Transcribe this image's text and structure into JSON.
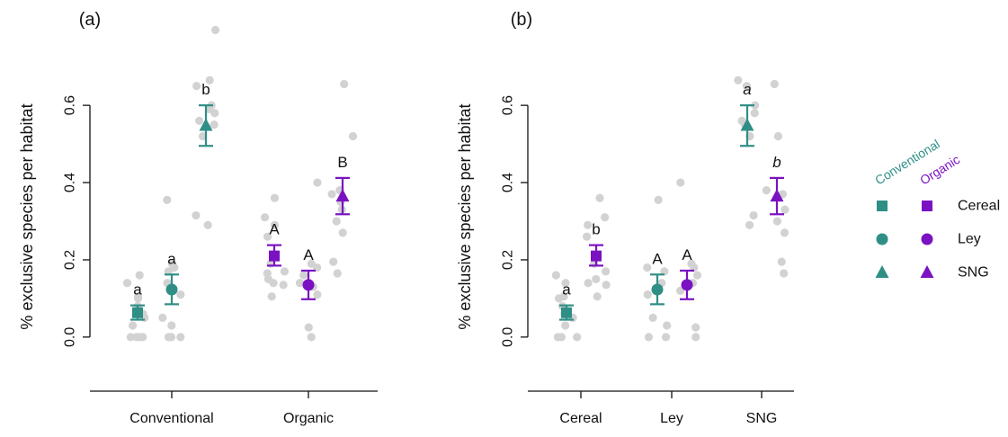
{
  "colors": {
    "conventional": "#2f8f86",
    "organic": "#7a12c2",
    "raw_points": "#d2d2d2"
  },
  "chart_data": [
    {
      "type": "scatter",
      "panel_label": "(a)",
      "ylabel": "% exclusive species per habitat",
      "ylim": [
        -0.14,
        0.74
      ],
      "yticks": [
        0.0,
        0.2,
        0.4,
        0.6
      ],
      "ytick_labels": [
        "0.0",
        "0.2",
        "0.4",
        "0.6"
      ],
      "groups": [
        "Conventional",
        "Organic"
      ],
      "series": [
        {
          "system": "Conventional",
          "habitat": "Cereal",
          "group": 0,
          "slot": 0,
          "mean": 0.063,
          "lower": 0.045,
          "upper": 0.082,
          "letter": "a",
          "italic": false,
          "raw": [
            0.0,
            0.0,
            0.0,
            0.0,
            0.03,
            0.05,
            0.06,
            0.08,
            0.1,
            0.105,
            0.14,
            0.16
          ]
        },
        {
          "system": "Conventional",
          "habitat": "Ley",
          "group": 0,
          "slot": 1,
          "mean": 0.123,
          "lower": 0.085,
          "upper": 0.162,
          "letter": "a",
          "italic": false,
          "raw": [
            0.0,
            0.0,
            0.0,
            0.03,
            0.05,
            0.11,
            0.14,
            0.17,
            0.18,
            0.18,
            0.19,
            0.355
          ]
        },
        {
          "system": "Conventional",
          "habitat": "SNG",
          "group": 0,
          "slot": 2,
          "mean": 0.548,
          "lower": 0.495,
          "upper": 0.6,
          "letter": "b",
          "italic": false,
          "raw": [
            0.29,
            0.315,
            0.52,
            0.55,
            0.56,
            0.58,
            0.59,
            0.6,
            0.65,
            0.665,
            0.795
          ]
        },
        {
          "system": "Organic",
          "habitat": "Cereal",
          "group": 1,
          "slot": 0,
          "mean": 0.21,
          "lower": 0.185,
          "upper": 0.238,
          "letter": "A",
          "italic": false,
          "raw": [
            0.105,
            0.135,
            0.14,
            0.15,
            0.165,
            0.17,
            0.19,
            0.26,
            0.29,
            0.31,
            0.36
          ]
        },
        {
          "system": "Organic",
          "habitat": "Ley",
          "group": 1,
          "slot": 1,
          "mean": 0.135,
          "lower": 0.098,
          "upper": 0.172,
          "letter": "A",
          "italic": false,
          "raw": [
            0.0,
            0.025,
            0.11,
            0.13,
            0.14,
            0.16,
            0.18,
            0.19,
            0.4
          ]
        },
        {
          "system": "Organic",
          "habitat": "SNG",
          "group": 1,
          "slot": 2,
          "mean": 0.365,
          "lower": 0.318,
          "upper": 0.412,
          "letter": "B",
          "italic": false,
          "raw": [
            0.165,
            0.195,
            0.27,
            0.3,
            0.33,
            0.35,
            0.37,
            0.38,
            0.52,
            0.655
          ]
        }
      ]
    },
    {
      "type": "scatter",
      "panel_label": "(b)",
      "ylabel": "% exclusive species per habitat",
      "ylim": [
        -0.14,
        0.74
      ],
      "yticks": [
        0.0,
        0.2,
        0.4,
        0.6
      ],
      "ytick_labels": [
        "0.0",
        "0.2",
        "0.4",
        "0.6"
      ],
      "groups": [
        "Cereal",
        "Ley",
        "SNG"
      ],
      "series": [
        {
          "system": "Conventional",
          "habitat": "Cereal",
          "group": 0,
          "slot": 0,
          "mean": 0.063,
          "lower": 0.045,
          "upper": 0.082,
          "letter": "a",
          "italic": false,
          "raw": [
            0.0,
            0.0,
            0.0,
            0.03,
            0.05,
            0.06,
            0.08,
            0.1,
            0.105,
            0.14,
            0.16
          ]
        },
        {
          "system": "Organic",
          "habitat": "Cereal",
          "group": 0,
          "slot": 1,
          "mean": 0.21,
          "lower": 0.185,
          "upper": 0.238,
          "letter": "b",
          "italic": false,
          "raw": [
            0.105,
            0.135,
            0.14,
            0.15,
            0.17,
            0.19,
            0.26,
            0.29,
            0.31,
            0.36
          ]
        },
        {
          "system": "Conventional",
          "habitat": "Ley",
          "group": 1,
          "slot": 0,
          "mean": 0.123,
          "lower": 0.085,
          "upper": 0.162,
          "letter": "A",
          "italic": false,
          "raw": [
            0.0,
            0.0,
            0.03,
            0.05,
            0.11,
            0.14,
            0.17,
            0.18,
            0.355
          ]
        },
        {
          "system": "Organic",
          "habitat": "Ley",
          "group": 1,
          "slot": 1,
          "mean": 0.135,
          "lower": 0.098,
          "upper": 0.172,
          "letter": "A",
          "italic": false,
          "raw": [
            0.0,
            0.025,
            0.12,
            0.14,
            0.16,
            0.18,
            0.19,
            0.4
          ]
        },
        {
          "system": "Conventional",
          "habitat": "SNG",
          "group": 2,
          "slot": 0,
          "mean": 0.548,
          "lower": 0.495,
          "upper": 0.6,
          "letter": "a",
          "italic": true,
          "raw": [
            0.29,
            0.315,
            0.52,
            0.55,
            0.56,
            0.58,
            0.6,
            0.65,
            0.665
          ]
        },
        {
          "system": "Organic",
          "habitat": "SNG",
          "group": 2,
          "slot": 1,
          "mean": 0.365,
          "lower": 0.318,
          "upper": 0.412,
          "letter": "b",
          "italic": true,
          "raw": [
            0.165,
            0.195,
            0.27,
            0.3,
            0.33,
            0.37,
            0.38,
            0.52,
            0.655
          ]
        }
      ]
    }
  ],
  "legend": {
    "headers": [
      "Conventional",
      "Organic"
    ],
    "rows": [
      {
        "label": "Cereal",
        "shape": "square"
      },
      {
        "label": "Ley",
        "shape": "circle"
      },
      {
        "label": "SNG",
        "shape": "triangle"
      }
    ]
  }
}
